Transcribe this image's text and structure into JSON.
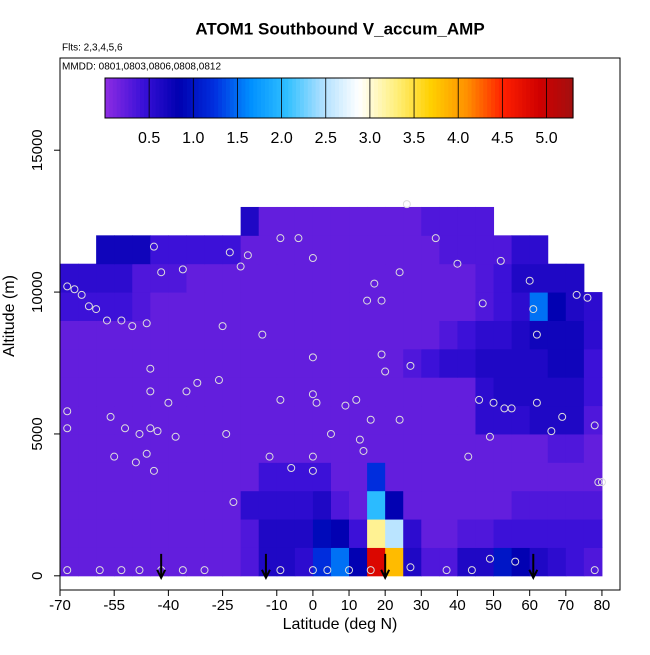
{
  "chart_data": {
    "type": "heatmap",
    "title": "ATOM1 Southbound V_accum_AMP",
    "subtitle_lines": [
      "Flts: 2,3,4,5,6",
      "MMDD: 0801,0803,0806,0808,0812"
    ],
    "x_label": "Latitude (deg N)",
    "y_label": "Altitude (m)",
    "xlim": [
      -70,
      85
    ],
    "ylim": [
      -500,
      18250
    ],
    "xticks": [
      -70,
      -55,
      -40,
      -25,
      -10,
      0,
      10,
      20,
      30,
      40,
      50,
      60,
      70,
      80
    ],
    "yticks": [
      0,
      5000,
      10000,
      15000
    ],
    "lat_bins": [
      -70,
      -65,
      -60,
      -55,
      -50,
      -45,
      -40,
      -35,
      -30,
      -25,
      -20,
      -15,
      -10,
      -5,
      0,
      5,
      10,
      15,
      20,
      25,
      30,
      35,
      40,
      45,
      50,
      55,
      60,
      65,
      70,
      75,
      80
    ],
    "alt_bins": [
      0,
      1000,
      2000,
      3000,
      4000,
      5000,
      6000,
      7000,
      8000,
      9000,
      10000,
      11000,
      12000,
      13000
    ],
    "values": [
      [
        0.2,
        0.2,
        0.2,
        0.2,
        0.2,
        0.2,
        0.2,
        0.2,
        0.2,
        0.2,
        0.3,
        0.6,
        0.6,
        0.5,
        1.2,
        1.5,
        0.8,
        4.8,
        3.8,
        0.6,
        0.3,
        0.3,
        0.6,
        0.6,
        1.0,
        0.8,
        0.6,
        0.5,
        0.4,
        0.3
      ],
      [
        0.2,
        0.2,
        0.2,
        0.2,
        0.2,
        0.2,
        0.2,
        0.2,
        0.2,
        0.2,
        0.3,
        0.6,
        0.6,
        0.6,
        0.9,
        0.8,
        0.4,
        3.2,
        2.5,
        0.5,
        0.2,
        0.2,
        0.3,
        0.3,
        0.4,
        0.4,
        0.4,
        0.4,
        0.4,
        0.4
      ],
      [
        0.2,
        0.2,
        0.2,
        0.2,
        0.2,
        0.2,
        0.2,
        0.2,
        0.2,
        0.2,
        0.5,
        0.5,
        0.5,
        0.5,
        0.6,
        0.3,
        0.2,
        2.0,
        0.8,
        0.2,
        0.2,
        0.2,
        0.2,
        0.2,
        0.2,
        0.3,
        0.3,
        0.3,
        0.3,
        0.3
      ],
      [
        0.2,
        0.2,
        0.2,
        0.2,
        0.2,
        0.2,
        0.2,
        0.2,
        0.2,
        0.2,
        0.2,
        0.4,
        0.4,
        0.4,
        0.4,
        0.2,
        0.2,
        1.2,
        0.2,
        0.2,
        0.2,
        0.2,
        0.2,
        0.2,
        0.2,
        0.2,
        0.2,
        0.2,
        0.2,
        0.2
      ],
      [
        0.2,
        0.2,
        0.2,
        0.2,
        0.2,
        0.2,
        0.2,
        0.2,
        0.2,
        0.2,
        0.2,
        0.2,
        0.2,
        0.2,
        0.2,
        0.2,
        0.2,
        0.2,
        0.2,
        0.2,
        0.2,
        0.2,
        0.2,
        0.2,
        0.2,
        0.2,
        0.2,
        0.3,
        0.3,
        0.2
      ],
      [
        0.2,
        0.2,
        0.2,
        0.2,
        0.2,
        0.2,
        0.2,
        0.2,
        0.2,
        0.2,
        0.2,
        0.2,
        0.2,
        0.2,
        0.2,
        0.2,
        0.2,
        0.2,
        0.2,
        0.2,
        0.2,
        0.2,
        0.2,
        0.5,
        0.5,
        0.5,
        0.6,
        0.6,
        0.6,
        0.3
      ],
      [
        0.2,
        0.2,
        0.2,
        0.2,
        0.2,
        0.2,
        0.2,
        0.2,
        0.2,
        0.2,
        0.2,
        0.2,
        0.2,
        0.2,
        0.2,
        0.2,
        0.2,
        0.2,
        0.2,
        0.2,
        0.2,
        0.2,
        0.2,
        0.5,
        0.6,
        0.6,
        0.6,
        0.6,
        0.6,
        0.4
      ],
      [
        0.2,
        0.2,
        0.2,
        0.2,
        0.2,
        0.2,
        0.2,
        0.2,
        0.2,
        0.2,
        0.2,
        0.2,
        0.2,
        0.2,
        0.2,
        0.2,
        0.2,
        0.2,
        0.2,
        0.3,
        0.4,
        0.5,
        0.5,
        0.6,
        0.6,
        0.6,
        0.6,
        0.7,
        0.7,
        0.4
      ],
      [
        0.2,
        0.2,
        0.2,
        0.2,
        0.2,
        0.2,
        0.2,
        0.2,
        0.2,
        0.2,
        0.2,
        0.2,
        0.2,
        0.2,
        0.2,
        0.2,
        0.2,
        0.2,
        0.2,
        0.2,
        0.2,
        0.3,
        0.4,
        0.5,
        0.5,
        0.6,
        0.7,
        0.7,
        0.7,
        0.5
      ],
      [
        0.4,
        0.4,
        0.4,
        0.4,
        0.3,
        0.2,
        0.2,
        0.2,
        0.2,
        0.2,
        0.2,
        0.2,
        0.2,
        0.2,
        0.2,
        0.2,
        0.2,
        0.2,
        0.2,
        0.2,
        0.2,
        0.2,
        0.2,
        0.3,
        0.4,
        0.5,
        1.5,
        0.8,
        0.6,
        0.5
      ],
      [
        0.5,
        0.5,
        0.5,
        0.5,
        0.3,
        0.3,
        0.3,
        0.2,
        0.2,
        0.2,
        0.2,
        0.2,
        0.2,
        0.2,
        0.2,
        0.2,
        0.2,
        0.2,
        0.2,
        0.2,
        0.2,
        0.2,
        0.2,
        0.3,
        0.4,
        0.6,
        0.6,
        0.6,
        0.6,
        null
      ],
      [
        null,
        null,
        0.7,
        0.7,
        0.7,
        0.4,
        0.4,
        0.4,
        0.4,
        0.4,
        0.2,
        0.2,
        0.2,
        0.2,
        0.2,
        0.2,
        0.2,
        0.2,
        0.2,
        0.2,
        0.2,
        0.3,
        0.3,
        0.3,
        0.3,
        0.5,
        0.5,
        null,
        null,
        null
      ],
      [
        null,
        null,
        null,
        null,
        null,
        null,
        null,
        null,
        null,
        null,
        0.6,
        0.2,
        0.2,
        0.2,
        0.2,
        0.2,
        0.2,
        0.2,
        0.2,
        0.2,
        0.3,
        0.3,
        0.3,
        0.3,
        null,
        null,
        null,
        null,
        null,
        null
      ]
    ],
    "samples": {
      "x": [
        -68,
        -68,
        -68,
        -66,
        -64,
        -62,
        -60,
        -57,
        -53,
        -50,
        -46,
        -45,
        -45,
        -45,
        -44,
        -46,
        -49,
        -52,
        -56,
        -55,
        -48,
        -43,
        -40,
        -38,
        -35,
        -32,
        -26,
        -24,
        -22,
        -25,
        -20,
        -23,
        -18,
        -9,
        -4,
        0,
        -44,
        -42,
        -36,
        -14,
        -12,
        -9,
        -6,
        0,
        1,
        0,
        0,
        0,
        5,
        9,
        12,
        14,
        13,
        16,
        17,
        15,
        19,
        19,
        20,
        24,
        24,
        27,
        26,
        34,
        40,
        43,
        46,
        49,
        50,
        53,
        55,
        47,
        52,
        60,
        61,
        62,
        66,
        69,
        73,
        76,
        79,
        80,
        78,
        62,
        -68,
        -59,
        -53,
        -48,
        -42,
        -36,
        -30,
        -9,
        0,
        4,
        10,
        16,
        27,
        37,
        44,
        49,
        56,
        78
      ],
      "y": [
        5800,
        5200,
        10200,
        10100,
        9900,
        9500,
        9400,
        9000,
        9000,
        8800,
        8900,
        7300,
        6500,
        5200,
        3700,
        4300,
        4000,
        5200,
        5600,
        4200,
        5000,
        5100,
        6100,
        4900,
        6500,
        6800,
        6900,
        5000,
        2600,
        8800,
        10900,
        11400,
        11300,
        11900,
        11900,
        11200,
        11600,
        10700,
        10800,
        8500,
        4200,
        6200,
        3800,
        6400,
        6100,
        7700,
        4200,
        3700,
        5000,
        6000,
        6200,
        4400,
        4800,
        5500,
        10300,
        9700,
        9700,
        7800,
        7200,
        10700,
        5500,
        7400,
        13100,
        11900,
        11000,
        4200,
        6200,
        4900,
        6100,
        5900,
        5900,
        9600,
        11100,
        10400,
        9400,
        8500,
        5100,
        5600,
        9900,
        9800,
        3300,
        3300,
        5300,
        6100,
        200,
        200,
        200,
        200,
        200,
        200,
        200,
        200,
        200,
        200,
        200,
        200,
        300,
        200,
        200,
        600,
        500,
        200
      ]
    },
    "arrows": [
      -42,
      -13,
      20,
      61
    ],
    "colorbar": {
      "lim": [
        0,
        5.3
      ],
      "ticks": [
        0.5,
        {
          "value": 1,
          "label": "1.0"
        },
        1.5,
        {
          "value": 2,
          "label": "2.0"
        },
        2.5,
        {
          "value": 3,
          "label": "3.0"
        },
        3.5,
        {
          "value": 4,
          "label": "4.0"
        },
        4.5,
        {
          "value": 5,
          "label": "5.0"
        }
      ],
      "colors": [
        "#8a2be2",
        "#3a10d8",
        "#0000b0",
        "#0030e0",
        "#0090ff",
        "#30c0ff",
        "#b0e0ff",
        "#ffffff",
        "#fff080",
        "#ffd000",
        "#ff9000",
        "#ff2000",
        "#d00000",
        "#a01010"
      ]
    }
  }
}
